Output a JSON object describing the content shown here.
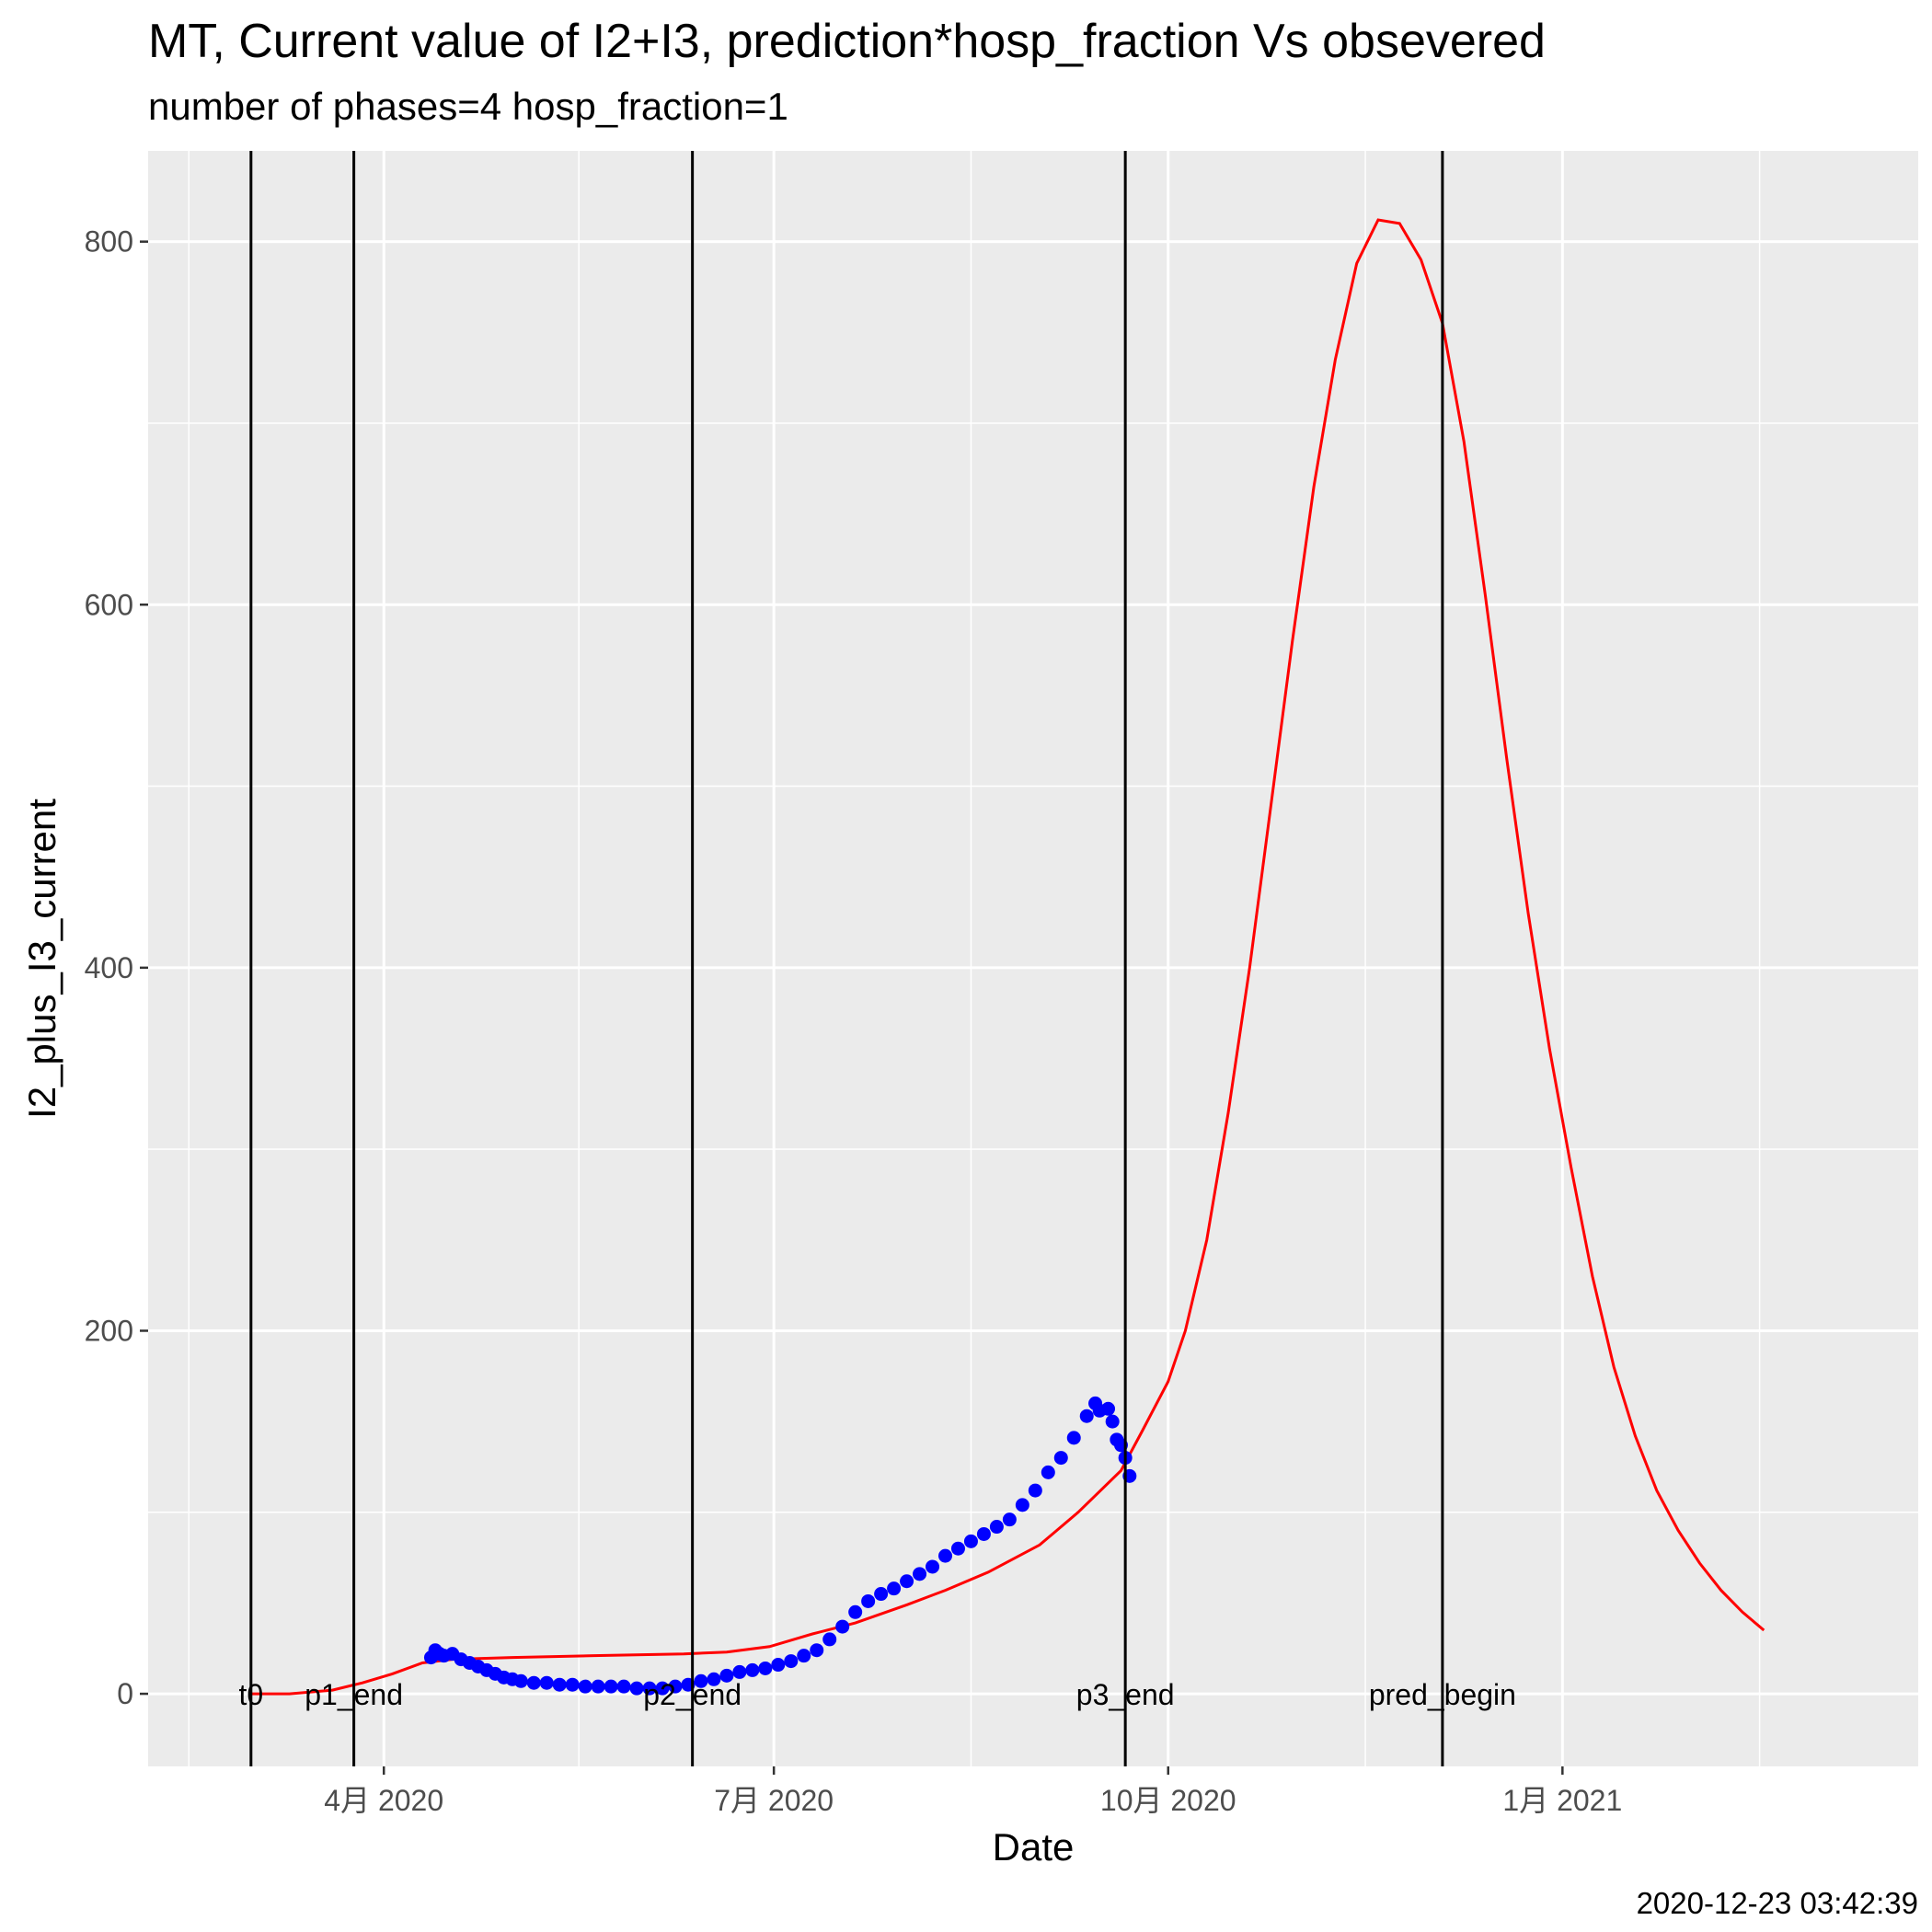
{
  "chart_data": {
    "type": "line",
    "title": "MT, Current value of I2+I3, prediction*hosp_fraction Vs obsevered",
    "subtitle": "number of phases=4   hosp_fraction=1",
    "xlabel": "Date",
    "ylabel": "I2_plus_I3_current",
    "caption": "2020-12-23 03:42:39",
    "xlim": [
      "2020-02-06",
      "2021-03-25"
    ],
    "ylim": [
      -40,
      850
    ],
    "x_ticks": [
      {
        "date": "2020-04-01",
        "label": "4月 2020"
      },
      {
        "date": "2020-07-01",
        "label": "7月 2020"
      },
      {
        "date": "2020-10-01",
        "label": "10月 2020"
      },
      {
        "date": "2021-01-01",
        "label": "1月 2021"
      }
    ],
    "y_ticks": [
      0,
      200,
      400,
      600,
      800
    ],
    "panel_background": "#ebebeb",
    "grid": true,
    "vertical_lines": [
      {
        "label": "t0",
        "date": "2020-03-01"
      },
      {
        "label": "p1_end",
        "date": "2020-03-25"
      },
      {
        "label": "p2_end",
        "date": "2020-06-12"
      },
      {
        "label": "p3_end",
        "date": "2020-09-21"
      },
      {
        "label": "pred_begin",
        "date": "2020-12-04"
      }
    ],
    "series": [
      {
        "kind": "line",
        "color": "#ff0000",
        "points": [
          [
            "2020-03-01",
            0
          ],
          [
            "2020-03-10",
            0
          ],
          [
            "2020-03-20",
            2
          ],
          [
            "2020-03-27",
            6
          ],
          [
            "2020-04-03",
            11
          ],
          [
            "2020-04-10",
            17
          ],
          [
            "2020-04-17",
            19
          ],
          [
            "2020-05-01",
            20
          ],
          [
            "2020-05-20",
            21
          ],
          [
            "2020-06-10",
            22
          ],
          [
            "2020-06-20",
            23
          ],
          [
            "2020-06-30",
            26
          ],
          [
            "2020-07-10",
            33
          ],
          [
            "2020-07-20",
            39
          ],
          [
            "2020-08-01",
            49
          ],
          [
            "2020-08-10",
            57
          ],
          [
            "2020-08-20",
            67
          ],
          [
            "2020-09-01",
            82
          ],
          [
            "2020-09-10",
            100
          ],
          [
            "2020-09-20",
            123
          ],
          [
            "2020-09-25",
            145
          ],
          [
            "2020-10-01",
            172
          ],
          [
            "2020-10-05",
            200
          ],
          [
            "2020-10-10",
            250
          ],
          [
            "2020-10-15",
            320
          ],
          [
            "2020-10-20",
            400
          ],
          [
            "2020-10-25",
            490
          ],
          [
            "2020-10-30",
            580
          ],
          [
            "2020-11-04",
            665
          ],
          [
            "2020-11-09",
            735
          ],
          [
            "2020-11-14",
            788
          ],
          [
            "2020-11-19",
            812
          ],
          [
            "2020-11-24",
            810
          ],
          [
            "2020-11-29",
            790
          ],
          [
            "2020-12-04",
            755
          ],
          [
            "2020-12-09",
            690
          ],
          [
            "2020-12-14",
            605
          ],
          [
            "2020-12-19",
            515
          ],
          [
            "2020-12-24",
            430
          ],
          [
            "2020-12-29",
            355
          ],
          [
            "2021-01-03",
            290
          ],
          [
            "2021-01-08",
            230
          ],
          [
            "2021-01-13",
            180
          ],
          [
            "2021-01-18",
            142
          ],
          [
            "2021-01-23",
            112
          ],
          [
            "2021-01-28",
            90
          ],
          [
            "2021-02-02",
            72
          ],
          [
            "2021-02-07",
            57
          ],
          [
            "2021-02-12",
            45
          ],
          [
            "2021-02-17",
            35
          ]
        ]
      },
      {
        "kind": "points",
        "color": "#0000ff",
        "points": [
          [
            "2020-04-12",
            20
          ],
          [
            "2020-04-13",
            24
          ],
          [
            "2020-04-14",
            22
          ],
          [
            "2020-04-15",
            21
          ],
          [
            "2020-04-17",
            22
          ],
          [
            "2020-04-19",
            19
          ],
          [
            "2020-04-21",
            17
          ],
          [
            "2020-04-23",
            15
          ],
          [
            "2020-04-25",
            13
          ],
          [
            "2020-04-27",
            11
          ],
          [
            "2020-04-29",
            9
          ],
          [
            "2020-05-01",
            8
          ],
          [
            "2020-05-03",
            7
          ],
          [
            "2020-05-06",
            6
          ],
          [
            "2020-05-09",
            6
          ],
          [
            "2020-05-12",
            5
          ],
          [
            "2020-05-15",
            5
          ],
          [
            "2020-05-18",
            4
          ],
          [
            "2020-05-21",
            4
          ],
          [
            "2020-05-24",
            4
          ],
          [
            "2020-05-27",
            4
          ],
          [
            "2020-05-30",
            3
          ],
          [
            "2020-06-02",
            3
          ],
          [
            "2020-06-05",
            3
          ],
          [
            "2020-06-08",
            4
          ],
          [
            "2020-06-11",
            5
          ],
          [
            "2020-06-14",
            7
          ],
          [
            "2020-06-17",
            8
          ],
          [
            "2020-06-20",
            10
          ],
          [
            "2020-06-23",
            12
          ],
          [
            "2020-06-26",
            13
          ],
          [
            "2020-06-29",
            14
          ],
          [
            "2020-07-02",
            16
          ],
          [
            "2020-07-05",
            18
          ],
          [
            "2020-07-08",
            21
          ],
          [
            "2020-07-11",
            24
          ],
          [
            "2020-07-14",
            30
          ],
          [
            "2020-07-17",
            37
          ],
          [
            "2020-07-20",
            45
          ],
          [
            "2020-07-23",
            51
          ],
          [
            "2020-07-26",
            55
          ],
          [
            "2020-07-29",
            58
          ],
          [
            "2020-08-01",
            62
          ],
          [
            "2020-08-04",
            66
          ],
          [
            "2020-08-07",
            70
          ],
          [
            "2020-08-10",
            76
          ],
          [
            "2020-08-13",
            80
          ],
          [
            "2020-08-16",
            84
          ],
          [
            "2020-08-19",
            88
          ],
          [
            "2020-08-22",
            92
          ],
          [
            "2020-08-25",
            96
          ],
          [
            "2020-08-28",
            104
          ],
          [
            "2020-08-31",
            112
          ],
          [
            "2020-09-03",
            122
          ],
          [
            "2020-09-06",
            130
          ],
          [
            "2020-09-09",
            141
          ],
          [
            "2020-09-12",
            153
          ],
          [
            "2020-09-14",
            160
          ],
          [
            "2020-09-15",
            156
          ],
          [
            "2020-09-17",
            157
          ],
          [
            "2020-09-18",
            150
          ],
          [
            "2020-09-19",
            140
          ],
          [
            "2020-09-20",
            137
          ],
          [
            "2020-09-21",
            130
          ],
          [
            "2020-09-22",
            120
          ]
        ]
      }
    ]
  }
}
